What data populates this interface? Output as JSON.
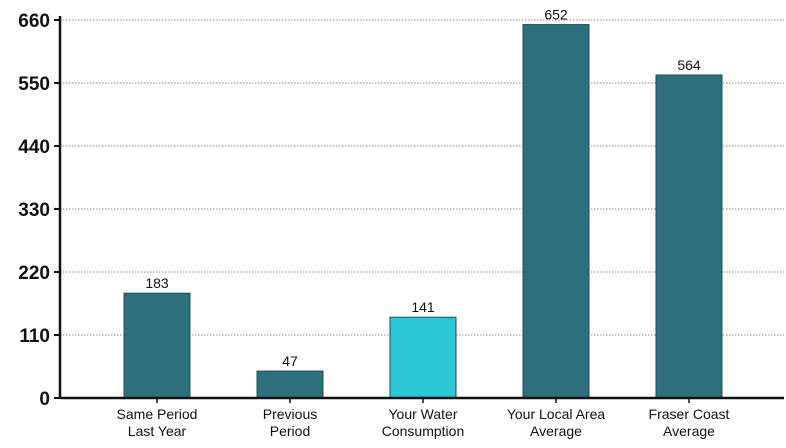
{
  "chart_data": {
    "type": "bar",
    "categories": [
      [
        "Same Period",
        "Last Year"
      ],
      [
        "Previous",
        "Period"
      ],
      [
        "Your Water",
        "Consumption"
      ],
      [
        "Your Local Area",
        "Average"
      ],
      [
        "Fraser Coast",
        "Average"
      ]
    ],
    "values": [
      183,
      47,
      141,
      652,
      564
    ],
    "value_labels": [
      "183",
      "47",
      "141",
      "652",
      "564"
    ],
    "bar_colors": [
      "#2e6f7d",
      "#2e6f7d",
      "#2dc6d4",
      "#2e6f7d",
      "#2e6f7d"
    ],
    "ylim": [
      0,
      660
    ],
    "yticks": [
      0,
      110,
      220,
      330,
      440,
      550,
      660
    ],
    "ytick_labels": [
      "0",
      "110",
      "220",
      "330",
      "440",
      "550",
      "660"
    ],
    "grid": true,
    "legend": "none"
  }
}
